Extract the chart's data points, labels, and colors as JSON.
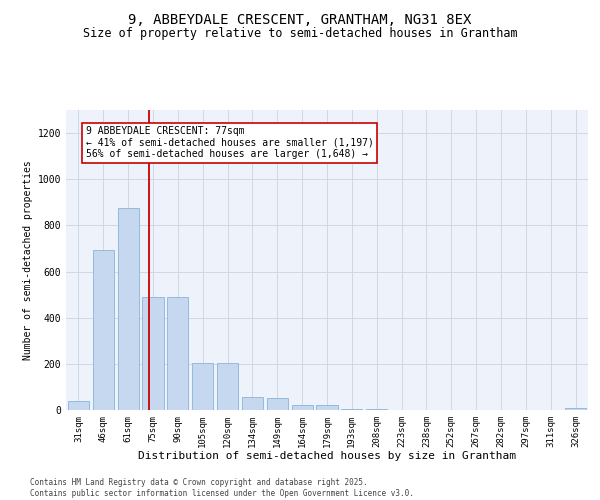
{
  "title": "9, ABBEYDALE CRESCENT, GRANTHAM, NG31 8EX",
  "subtitle": "Size of property relative to semi-detached houses in Grantham",
  "xlabel": "Distribution of semi-detached houses by size in Grantham",
  "ylabel": "Number of semi-detached properties",
  "categories": [
    "31sqm",
    "46sqm",
    "61sqm",
    "75sqm",
    "90sqm",
    "105sqm",
    "120sqm",
    "134sqm",
    "149sqm",
    "164sqm",
    "179sqm",
    "193sqm",
    "208sqm",
    "223sqm",
    "238sqm",
    "252sqm",
    "267sqm",
    "282sqm",
    "297sqm",
    "311sqm",
    "326sqm"
  ],
  "values": [
    40,
    695,
    875,
    490,
    490,
    205,
    205,
    55,
    50,
    20,
    20,
    5,
    5,
    0,
    0,
    0,
    0,
    0,
    0,
    0,
    10
  ],
  "bar_color": "#c5d8f0",
  "bar_edge_color": "#7aaad4",
  "property_line_x": 2.85,
  "annotation_text": "9 ABBEYDALE CRESCENT: 77sqm\n← 41% of semi-detached houses are smaller (1,197)\n56% of semi-detached houses are larger (1,648) →",
  "annotation_box_color": "#ffffff",
  "annotation_box_edge_color": "#cc0000",
  "property_line_color": "#cc0000",
  "ylim": [
    0,
    1300
  ],
  "yticks": [
    0,
    200,
    400,
    600,
    800,
    1000,
    1200
  ],
  "grid_color": "#d0d8e8",
  "background_color": "#eef2fa",
  "footnote": "Contains HM Land Registry data © Crown copyright and database right 2025.\nContains public sector information licensed under the Open Government Licence v3.0.",
  "title_fontsize": 10,
  "subtitle_fontsize": 8.5,
  "xlabel_fontsize": 8,
  "ylabel_fontsize": 7,
  "tick_fontsize": 6.5,
  "annotation_fontsize": 7,
  "footnote_fontsize": 5.5
}
